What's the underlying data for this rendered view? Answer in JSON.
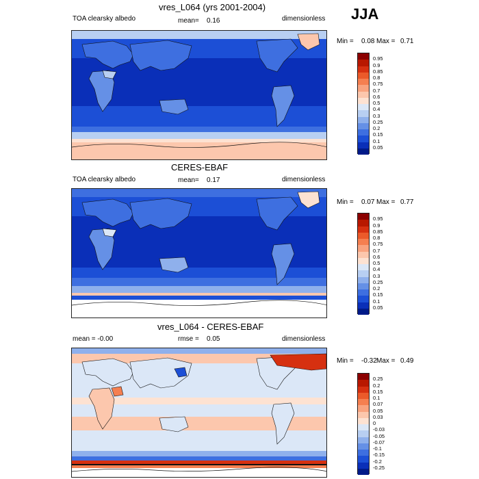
{
  "season": "JJA",
  "panels": [
    {
      "id": "model",
      "title": "vres_L064 (yrs 2001-2004)",
      "left_label": "TOA clearsky albedo",
      "stat_label": "mean=",
      "stat_value": "0.16",
      "units": "dimensionless",
      "min_label": "Min =",
      "min_value": "0.08",
      "max_label": "Max =",
      "max_value": "0.71",
      "colorbar": [
        "0.95",
        "0.9",
        "0.85",
        "0.8",
        "0.75",
        "0.7",
        "0.6",
        "0.5",
        "0.4",
        "0.3",
        "0.25",
        "0.2",
        "0.15",
        "0.1",
        "0.05"
      ],
      "colors": [
        "#8b0000",
        "#b81800",
        "#d63010",
        "#eb5a2a",
        "#f57f50",
        "#f9a37f",
        "#fcc7ad",
        "#fde2d2",
        "#dbe7f7",
        "#b8cff2",
        "#8fb0ec",
        "#6590e6",
        "#3e6fe0",
        "#1c4fd6",
        "#0a2fb8",
        "#001a88"
      ]
    },
    {
      "id": "obs",
      "title": "CERES-EBAF",
      "left_label": "TOA clearsky albedo",
      "stat_label": "mean=",
      "stat_value": "0.17",
      "units": "dimensionless",
      "min_label": "Min =",
      "min_value": "0.07",
      "max_label": "Max =",
      "max_value": "0.77",
      "colorbar": [
        "0.95",
        "0.9",
        "0.85",
        "0.8",
        "0.75",
        "0.7",
        "0.6",
        "0.5",
        "0.4",
        "0.3",
        "0.25",
        "0.2",
        "0.15",
        "0.1",
        "0.05"
      ],
      "colors": [
        "#8b0000",
        "#b81800",
        "#d63010",
        "#eb5a2a",
        "#f57f50",
        "#f9a37f",
        "#fcc7ad",
        "#fde2d2",
        "#dbe7f7",
        "#b8cff2",
        "#8fb0ec",
        "#6590e6",
        "#3e6fe0",
        "#1c4fd6",
        "#0a2fb8",
        "#001a88"
      ]
    },
    {
      "id": "diff",
      "title": "vres_L064 - CERES-EBAF",
      "left_label": "mean =  -0.00",
      "stat_label": "rmse =",
      "stat_value": "0.05",
      "units": "dimensionless",
      "min_label": "Min =",
      "min_value": "-0.32",
      "max_label": "Max =",
      "max_value": "0.49",
      "colorbar": [
        "0.25",
        "0.2",
        "0.15",
        "0.1",
        "0.07",
        "0.05",
        "0.03",
        "0",
        "-0.03",
        "-0.05",
        "-0.07",
        "-0.1",
        "-0.15",
        "-0.2",
        "-0.25"
      ],
      "colors": [
        "#8b0000",
        "#b81800",
        "#d63010",
        "#eb5a2a",
        "#f57f50",
        "#f9a37f",
        "#fcc7ad",
        "#fde2d2",
        "#dbe7f7",
        "#b8cff2",
        "#8fb0ec",
        "#6590e6",
        "#3e6fe0",
        "#1c4fd6",
        "#0a2fb8",
        "#001a88"
      ]
    }
  ]
}
